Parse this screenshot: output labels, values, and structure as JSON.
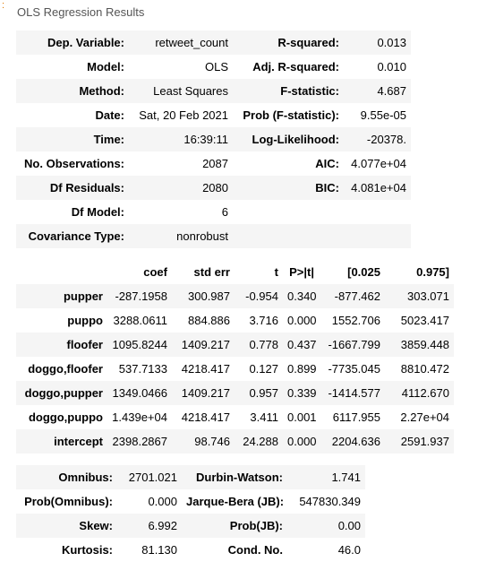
{
  "marker": ":",
  "caption": "OLS Regression Results",
  "summary_rows": [
    [
      "Dep. Variable:",
      "retweet_count",
      "R-squared:",
      "0.013"
    ],
    [
      "Model:",
      "OLS",
      "Adj. R-squared:",
      "0.010"
    ],
    [
      "Method:",
      "Least Squares",
      "F-statistic:",
      "4.687"
    ],
    [
      "Date:",
      "Sat, 20 Feb 2021",
      "Prob (F-statistic):",
      "9.55e-05"
    ],
    [
      "Time:",
      "16:39:11",
      "Log-Likelihood:",
      "-20378."
    ],
    [
      "No. Observations:",
      "2087",
      "AIC:",
      "4.077e+04"
    ],
    [
      "Df Residuals:",
      "2080",
      "BIC:",
      "4.081e+04"
    ],
    [
      "Df Model:",
      "6",
      "",
      ""
    ],
    [
      "Covariance Type:",
      "nonrobust",
      "",
      ""
    ]
  ],
  "coef_header": [
    "",
    "coef",
    "std err",
    "t",
    "P>|t|",
    "[0.025",
    "0.975]"
  ],
  "coef_rows": [
    [
      "pupper",
      "-287.1958",
      "300.987",
      "-0.954",
      "0.340",
      "-877.462",
      "303.071"
    ],
    [
      "puppo",
      "3288.0611",
      "884.886",
      "3.716",
      "0.000",
      "1552.706",
      "5023.417"
    ],
    [
      "floofer",
      "1095.8244",
      "1409.217",
      "0.778",
      "0.437",
      "-1667.799",
      "3859.448"
    ],
    [
      "doggo,floofer",
      "537.7133",
      "4218.417",
      "0.127",
      "0.899",
      "-7735.045",
      "8810.472"
    ],
    [
      "doggo,pupper",
      "1349.0466",
      "1409.217",
      "0.957",
      "0.339",
      "-1414.577",
      "4112.670"
    ],
    [
      "doggo,puppo",
      "1.439e+04",
      "4218.417",
      "3.411",
      "0.001",
      "6117.955",
      "2.27e+04"
    ],
    [
      "intercept",
      "2398.2867",
      "98.746",
      "24.288",
      "0.000",
      "2204.636",
      "2591.937"
    ]
  ],
  "diag_rows": [
    [
      "Omnibus:",
      "2701.021",
      "Durbin-Watson:",
      "1.741"
    ],
    [
      "Prob(Omnibus):",
      "0.000",
      "Jarque-Bera (JB):",
      "547830.349"
    ],
    [
      "Skew:",
      "6.992",
      "Prob(JB):",
      "0.00"
    ],
    [
      "Kurtosis:",
      "81.130",
      "Cond. No.",
      "46.0"
    ]
  ]
}
